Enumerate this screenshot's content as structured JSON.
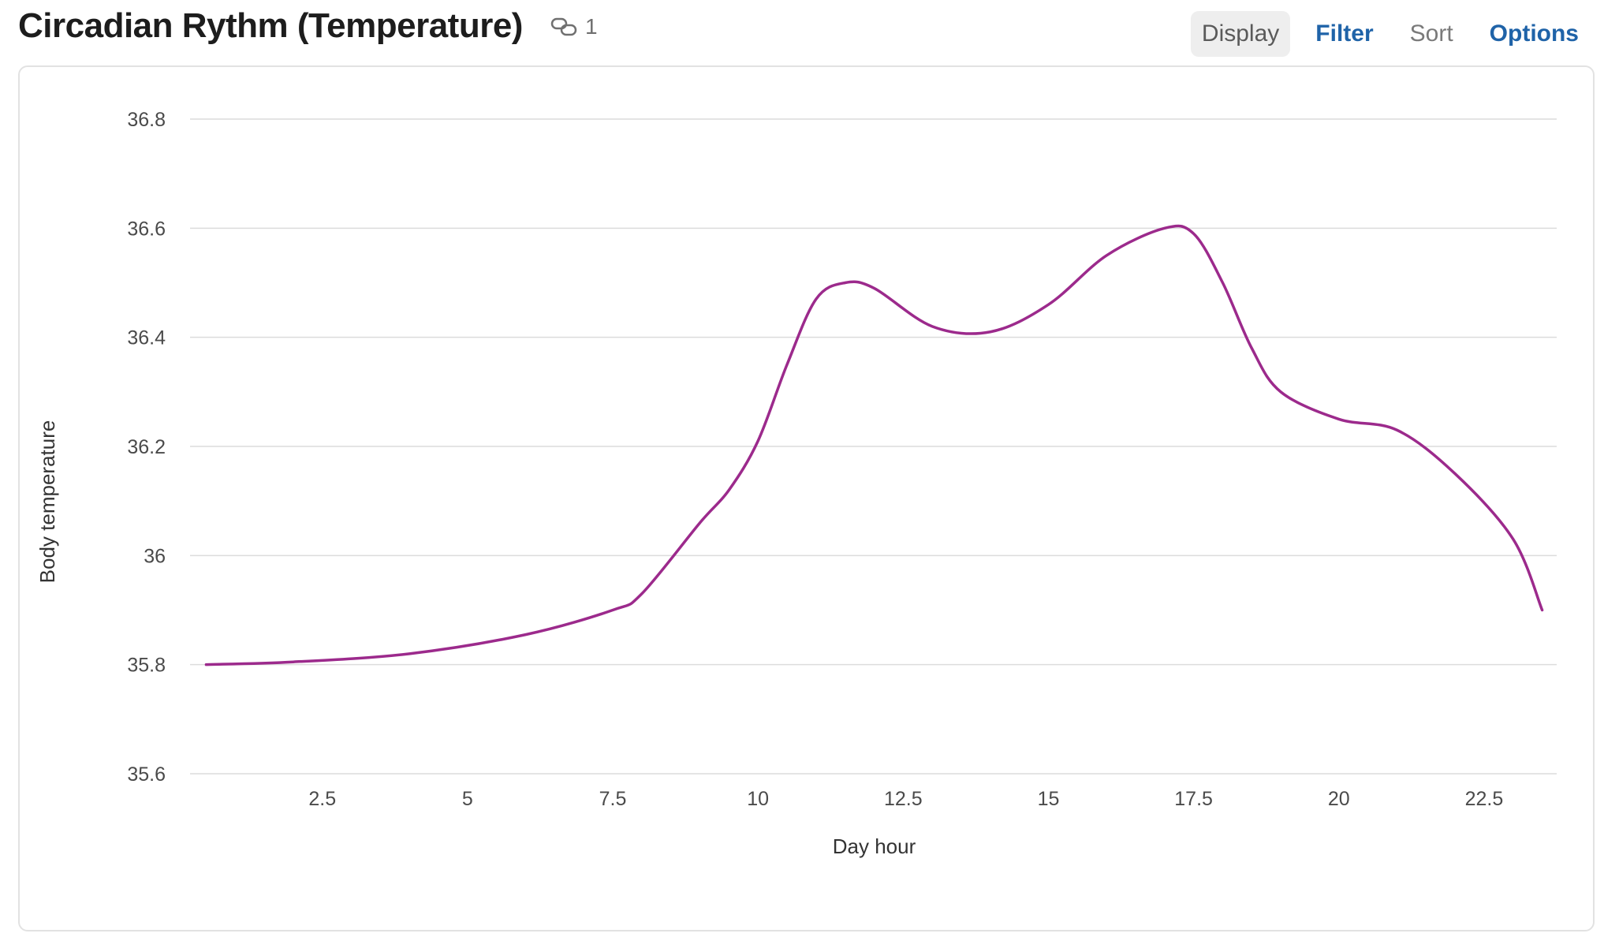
{
  "header": {
    "title": "Circadian Rythm (Temperature)",
    "link_count": "1",
    "link_icon": "link-icon",
    "nav": [
      {
        "label": "Display",
        "state": "active"
      },
      {
        "label": "Filter",
        "state": "link"
      },
      {
        "label": "Sort",
        "state": "muted"
      },
      {
        "label": "Options",
        "state": "link"
      }
    ]
  },
  "colors": {
    "line": "#9c2a8c",
    "grid": "#dcdcdc",
    "nav_link": "#1f63a8"
  },
  "chart_data": {
    "type": "line",
    "title": "",
    "xlabel": "Day hour",
    "ylabel": "Body temperature",
    "xlim": [
      0.25,
      23.75
    ],
    "ylim": [
      35.6,
      36.8
    ],
    "xticks": [
      2.5,
      5,
      7.5,
      10,
      12.5,
      15,
      17.5,
      20,
      22.5
    ],
    "xtick_labels": [
      "2.5",
      "5",
      "7.5",
      "10",
      "12.5",
      "15",
      "17.5",
      "20",
      "22.5"
    ],
    "yticks": [
      35.6,
      35.8,
      36.0,
      36.2,
      36.4,
      36.6,
      36.8
    ],
    "ytick_labels": [
      "35.6",
      "35.8",
      "36",
      "36.2",
      "36.4",
      "36.6",
      "36.8"
    ],
    "grid": "horizontal",
    "series": [
      {
        "x": [
          0.5,
          2,
          4,
          6,
          7.5,
          8,
          9,
          9.5,
          10,
          10.5,
          11,
          11.5,
          12,
          13,
          14,
          15,
          16,
          17,
          17.5,
          18,
          18.5,
          19,
          20,
          21,
          22,
          23,
          23.5
        ],
        "y": [
          35.8,
          35.805,
          35.82,
          35.855,
          35.9,
          35.93,
          36.06,
          36.12,
          36.21,
          36.35,
          36.47,
          36.5,
          36.49,
          36.42,
          36.41,
          36.46,
          36.55,
          36.6,
          36.59,
          36.5,
          36.38,
          36.3,
          36.25,
          36.23,
          36.15,
          36.03,
          35.9
        ]
      }
    ]
  }
}
